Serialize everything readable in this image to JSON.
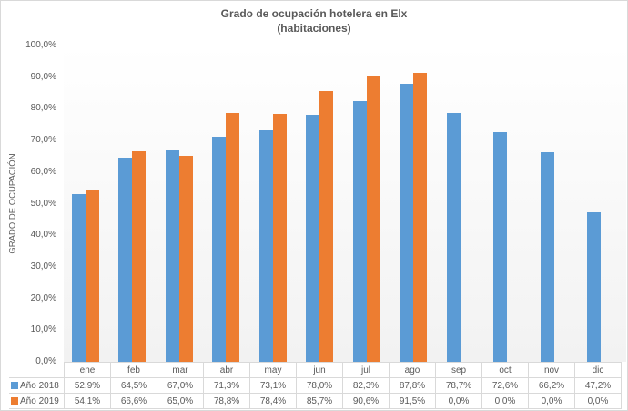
{
  "chart_data": {
    "type": "bar",
    "title": "Grado de ocupación hotelera en Elx",
    "subtitle": "(habitaciones)",
    "xlabel": "",
    "ylabel": "GRADO DE OCUPACIÓN",
    "ylim": [
      0,
      100
    ],
    "yticks": [
      "0,0%",
      "10,0%",
      "20,0%",
      "30,0%",
      "40,0%",
      "50,0%",
      "60,0%",
      "70,0%",
      "80,0%",
      "90,0%",
      "100,0%"
    ],
    "grid": false,
    "legend_position": "data-table",
    "categories": [
      "ene",
      "feb",
      "mar",
      "abr",
      "may",
      "jun",
      "jul",
      "ago",
      "sep",
      "oct",
      "nov",
      "dic"
    ],
    "series": [
      {
        "name": "Año 2018",
        "color": "#5b9bd5",
        "values": [
          52.9,
          64.5,
          67.0,
          71.3,
          73.1,
          78.0,
          82.3,
          87.8,
          78.7,
          72.6,
          66.2,
          47.2
        ],
        "labels": [
          "52,9%",
          "64,5%",
          "67,0%",
          "71,3%",
          "73,1%",
          "78,0%",
          "82,3%",
          "87,8%",
          "78,7%",
          "72,6%",
          "66,2%",
          "47,2%"
        ]
      },
      {
        "name": "Año 2019",
        "color": "#ed7d31",
        "values": [
          54.1,
          66.6,
          65.0,
          78.8,
          78.4,
          85.7,
          90.6,
          91.5,
          0.0,
          0.0,
          0.0,
          0.0
        ],
        "labels": [
          "54,1%",
          "66,6%",
          "65,0%",
          "78,8%",
          "78,4%",
          "85,7%",
          "90,6%",
          "91,5%",
          "0,0%",
          "0,0%",
          "0,0%",
          "0,0%"
        ]
      }
    ]
  }
}
